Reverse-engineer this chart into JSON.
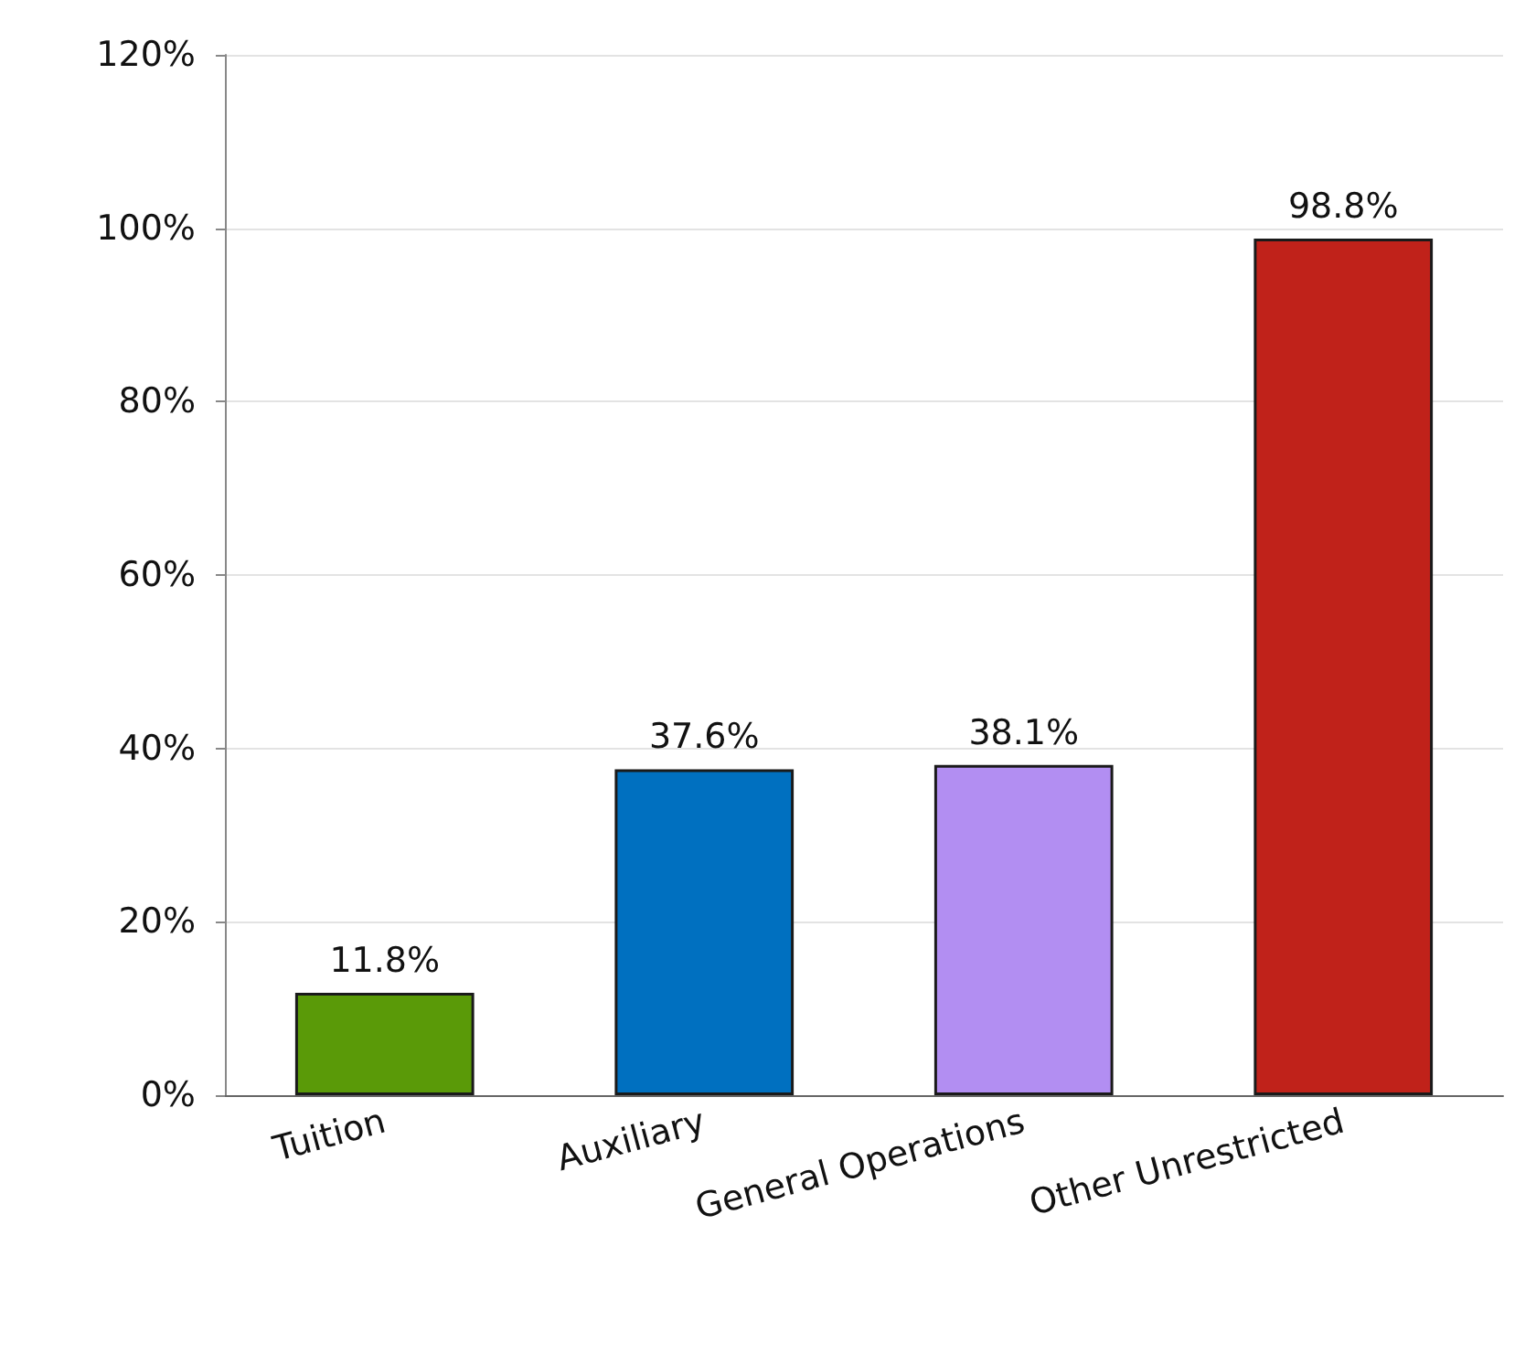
{
  "chart_data": {
    "type": "bar",
    "categories": [
      "Tuition",
      "Auxiliary",
      "General Operations",
      "Other Unrestricted"
    ],
    "values": [
      11.8,
      37.6,
      38.1,
      98.8
    ],
    "colors": [
      "#5a9a08",
      "#0070c0",
      "#b28ef2",
      "#c0221a"
    ],
    "value_labels": [
      "11.8%",
      "37.6%",
      "38.1%",
      "98.8%"
    ],
    "ylim": [
      0,
      120
    ],
    "yticks": [
      {
        "value": 0,
        "label": "0%"
      },
      {
        "value": 20,
        "label": "20%"
      },
      {
        "value": 40,
        "label": "40%"
      },
      {
        "value": 60,
        "label": "60%"
      },
      {
        "value": 80,
        "label": "80%"
      },
      {
        "value": 100,
        "label": "100%"
      },
      {
        "value": 120,
        "label": "120%"
      }
    ],
    "grid": "y"
  }
}
